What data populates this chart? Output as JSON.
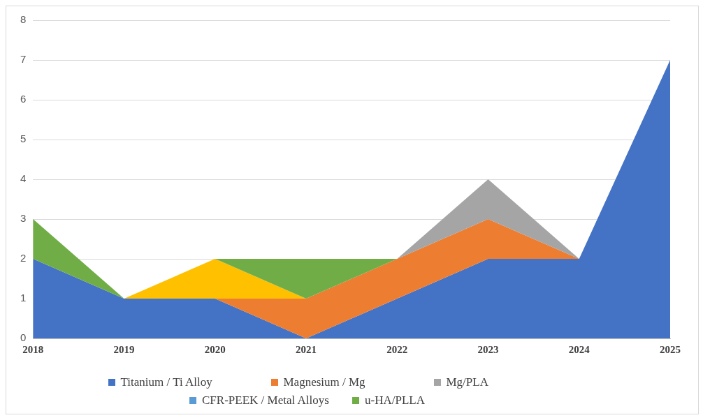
{
  "chart_data": {
    "type": "area",
    "stacked": true,
    "categories": [
      "2018",
      "2019",
      "2020",
      "2021",
      "2022",
      "2023",
      "2024",
      "2025"
    ],
    "series": [
      {
        "name": "Titanium / Ti Alloy",
        "color": "#4472c4",
        "values": [
          2,
          1,
          1,
          0,
          1,
          2,
          2,
          7
        ]
      },
      {
        "name": "Magnesium / Mg",
        "color": "#ed7d31",
        "values": [
          null,
          null,
          0,
          1,
          1,
          1,
          0,
          null
        ]
      },
      {
        "name": "Mg/PLA",
        "color": "#a5a5a5",
        "values": [
          null,
          null,
          null,
          null,
          0,
          1,
          0,
          null
        ]
      },
      {
        "color": "#ffc000",
        "values": [
          null,
          0,
          1,
          0,
          null,
          null,
          null,
          null
        ]
      },
      {
        "name": "CFR-PEEK / Metal Alloys",
        "color": "#5b9bd5",
        "values": [
          null,
          null,
          null,
          null,
          null,
          null,
          null,
          null
        ]
      },
      {
        "name": "u-HA/PLLA",
        "color": "#70ad47",
        "values": [
          1,
          0,
          0,
          1,
          0,
          null,
          null,
          null
        ]
      }
    ],
    "ylim": [
      0,
      8
    ],
    "yticks": [
      0,
      1,
      2,
      3,
      4,
      5,
      6,
      7,
      8
    ],
    "grid": "y",
    "legend": "bottom"
  }
}
